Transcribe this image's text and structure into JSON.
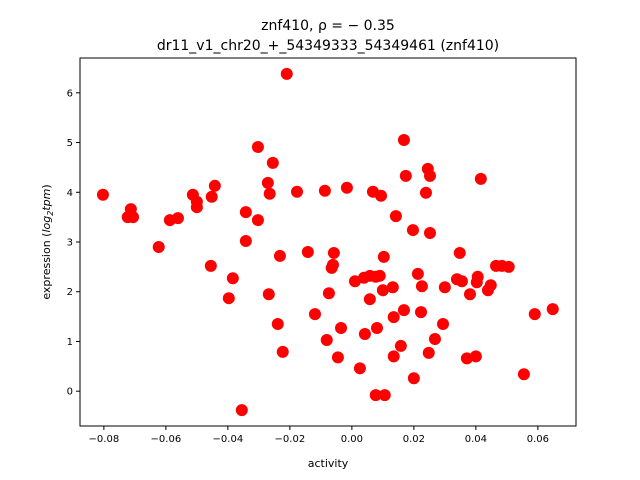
{
  "chart_data": {
    "type": "scatter",
    "title_line1": "znf410, ρ = − 0.35",
    "title_line2": "dr11_v1_chr20_+_54349333_54349461 (znf410)",
    "xlabel": "activity",
    "ylabel_parts": {
      "prefix": "expression (",
      "log": "log",
      "sub": "2",
      "tpm": "tpm",
      "suffix": ")"
    },
    "xlim": [
      -0.0877,
      0.0723
    ],
    "ylim": [
      -0.7,
      6.7
    ],
    "xticks": [
      -0.08,
      -0.06,
      -0.04,
      -0.02,
      0.0,
      0.02,
      0.04,
      0.06
    ],
    "xtick_labels": [
      "−0.08",
      "−0.06",
      "−0.04",
      "−0.02",
      "0.00",
      "0.02",
      "0.04",
      "0.06"
    ],
    "yticks": [
      0,
      1,
      2,
      3,
      4,
      5,
      6
    ],
    "ytick_labels": [
      "0",
      "1",
      "2",
      "3",
      "4",
      "5",
      "6"
    ],
    "marker_color": "#ff0000",
    "grid": false,
    "points": [
      [
        -0.0803,
        3.95
      ],
      [
        -0.0713,
        3.66
      ],
      [
        -0.0723,
        3.5
      ],
      [
        -0.0706,
        3.5
      ],
      [
        -0.0623,
        2.9
      ],
      [
        -0.0587,
        3.44
      ],
      [
        -0.0561,
        3.48
      ],
      [
        -0.0513,
        3.95
      ],
      [
        -0.05,
        3.81
      ],
      [
        -0.05,
        3.7
      ],
      [
        -0.0452,
        3.91
      ],
      [
        -0.0442,
        4.13
      ],
      [
        -0.0342,
        3.6
      ],
      [
        -0.0303,
        3.44
      ],
      [
        -0.0342,
        3.02
      ],
      [
        -0.0455,
        2.52
      ],
      [
        -0.0384,
        2.27
      ],
      [
        -0.0397,
        1.87
      ],
      [
        -0.0268,
        1.95
      ],
      [
        -0.0239,
        1.35
      ],
      [
        -0.0223,
        0.79
      ],
      [
        -0.0355,
        -0.38
      ],
      [
        -0.0255,
        4.59
      ],
      [
        -0.0271,
        4.19
      ],
      [
        -0.0265,
        3.97
      ],
      [
        -0.0177,
        4.01
      ],
      [
        -0.0087,
        4.03
      ],
      [
        -0.0016,
        4.09
      ],
      [
        -0.0232,
        2.72
      ],
      [
        -0.0303,
        4.91
      ],
      [
        -0.021,
        6.38
      ],
      [
        0.0168,
        5.05
      ],
      [
        0.0174,
        4.33
      ],
      [
        0.0245,
        4.47
      ],
      [
        0.0252,
        4.33
      ],
      [
        0.0416,
        4.27
      ],
      [
        0.0068,
        4.01
      ],
      [
        0.0094,
        3.93
      ],
      [
        0.0239,
        3.99
      ],
      [
        0.0142,
        3.52
      ],
      [
        0.0197,
        3.24
      ],
      [
        0.0252,
        3.18
      ],
      [
        -0.0142,
        2.8
      ],
      [
        -0.0058,
        2.78
      ],
      [
        -0.0061,
        2.54
      ],
      [
        -0.0065,
        2.48
      ],
      [
        0.0103,
        2.7
      ],
      [
        0.0348,
        2.78
      ],
      [
        0.0465,
        2.52
      ],
      [
        0.0484,
        2.52
      ],
      [
        0.0506,
        2.5
      ],
      [
        0.001,
        2.21
      ],
      [
        0.0039,
        2.28
      ],
      [
        0.0058,
        2.32
      ],
      [
        0.0077,
        2.3
      ],
      [
        0.009,
        2.32
      ],
      [
        0.0213,
        2.36
      ],
      [
        0.0226,
        2.11
      ],
      [
        0.0132,
        2.09
      ],
      [
        0.01,
        2.03
      ],
      [
        -0.0074,
        1.97
      ],
      [
        0.0058,
        1.85
      ],
      [
        0.03,
        2.09
      ],
      [
        0.0339,
        2.25
      ],
      [
        0.0355,
        2.21
      ],
      [
        0.0406,
        2.3
      ],
      [
        0.0403,
        2.19
      ],
      [
        0.0448,
        2.13
      ],
      [
        0.0439,
        2.03
      ],
      [
        0.0381,
        1.95
      ],
      [
        -0.0119,
        1.55
      ],
      [
        0.0168,
        1.63
      ],
      [
        0.0135,
        1.49
      ],
      [
        0.0223,
        1.59
      ],
      [
        0.059,
        1.55
      ],
      [
        0.0648,
        1.65
      ],
      [
        -0.0035,
        1.27
      ],
      [
        0.0081,
        1.27
      ],
      [
        0.0042,
        1.15
      ],
      [
        0.0294,
        1.35
      ],
      [
        -0.0081,
        1.03
      ],
      [
        0.0158,
        0.91
      ],
      [
        0.0268,
        1.05
      ],
      [
        -0.0045,
        0.68
      ],
      [
        0.0135,
        0.7
      ],
      [
        0.0248,
        0.77
      ],
      [
        0.0371,
        0.66
      ],
      [
        0.04,
        0.7
      ],
      [
        0.0026,
        0.46
      ],
      [
        0.02,
        0.26
      ],
      [
        0.0555,
        0.34
      ],
      [
        0.0077,
        -0.08
      ],
      [
        0.0106,
        -0.08
      ]
    ]
  }
}
